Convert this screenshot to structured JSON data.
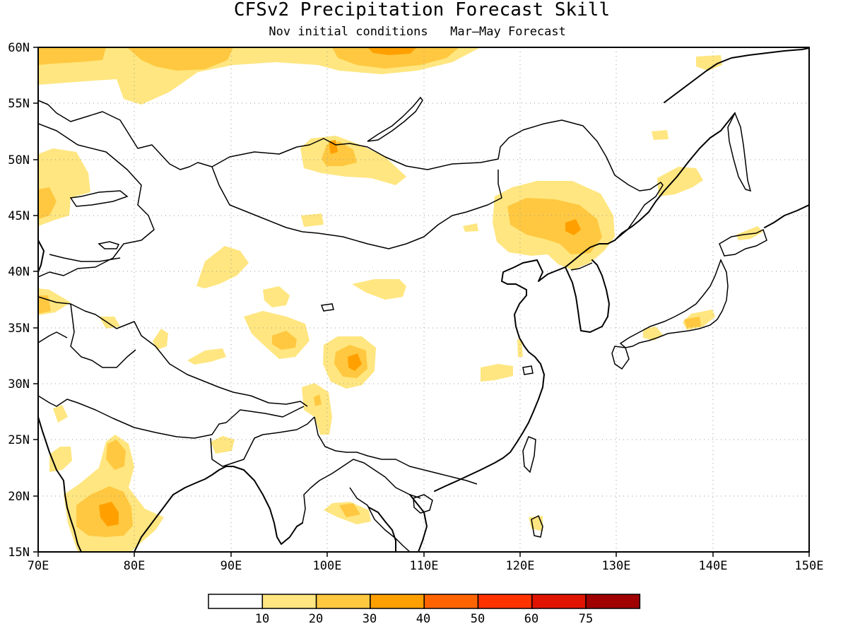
{
  "title": "CFSv2 Precipitation Forecast Skill",
  "subtitle_left": "Nov initial conditions",
  "subtitle_right": "Mar–May Forecast",
  "longitude_ticks": [
    "70E",
    "80E",
    "90E",
    "100E",
    "110E",
    "120E",
    "130E",
    "140E",
    "150E"
  ],
  "latitude_ticks": [
    "15N",
    "20N",
    "25N",
    "30N",
    "35N",
    "40N",
    "45N",
    "50N",
    "55N",
    "60N"
  ],
  "map_extent": {
    "lon_min": 70,
    "lon_max": 150,
    "lat_min": 15,
    "lat_max": 60
  },
  "legend": {
    "labels": [
      "10",
      "20",
      "30",
      "40",
      "50",
      "60",
      "75"
    ],
    "colors": [
      "#ffffff",
      "#ffe680",
      "#ffc840",
      "#ffa000",
      "#ff6400",
      "#ff3200",
      "#e01400",
      "#a00000"
    ]
  }
}
